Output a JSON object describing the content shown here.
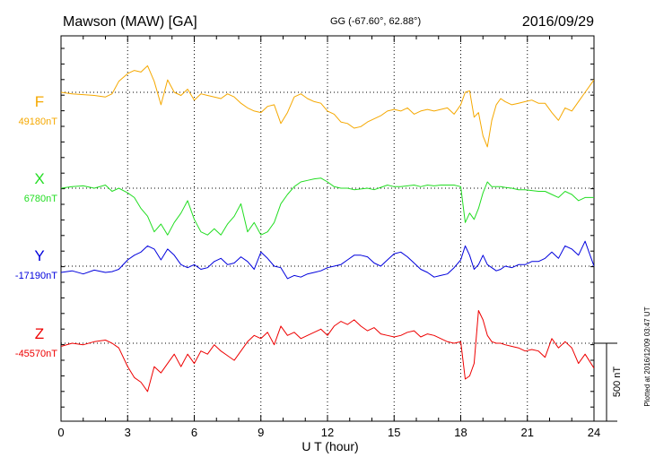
{
  "header": {
    "station": "Mawson (MAW)  [GA]",
    "coords": "GG (-67.60°,  62.88°)",
    "date": "2016/09/29"
  },
  "footer_note": "Plotted at 2016/12/09 03:47 UT",
  "colors": {
    "F": "#f5a800",
    "X": "#22dd22",
    "Y": "#0000dd",
    "Z": "#ee0000"
  },
  "chart_data": {
    "type": "line",
    "title": "Mawson (MAW)  [GA]",
    "xlabel": "U T (hour)",
    "xlim": [
      0,
      24
    ],
    "xticks": [
      0,
      3,
      6,
      9,
      12,
      15,
      18,
      21,
      24
    ],
    "grid": true,
    "scale_bar": "500 nT",
    "series": [
      {
        "name": "F",
        "baseline_label": "49180nT",
        "baseline": 49180,
        "x": [
          0,
          0.5,
          1,
          1.5,
          2,
          2.3,
          2.6,
          3,
          3.3,
          3.6,
          3.9,
          4.2,
          4.5,
          4.8,
          5.1,
          5.4,
          5.7,
          6,
          6.3,
          6.6,
          6.9,
          7.2,
          7.5,
          7.8,
          8.1,
          8.4,
          8.7,
          9,
          9.3,
          9.6,
          9.9,
          10.2,
          10.5,
          10.8,
          11.1,
          11.4,
          11.7,
          12,
          12.3,
          12.6,
          12.9,
          13.2,
          13.5,
          13.8,
          14.1,
          14.4,
          14.7,
          15,
          15.3,
          15.6,
          15.9,
          16.2,
          16.5,
          16.8,
          17.1,
          17.4,
          17.7,
          18,
          18.2,
          18.4,
          18.6,
          18.8,
          19,
          19.2,
          19.4,
          19.6,
          19.8,
          20,
          20.3,
          20.6,
          20.9,
          21.2,
          21.5,
          21.8,
          22.1,
          22.4,
          22.7,
          23,
          23.3,
          23.6,
          24
        ],
        "y": [
          49180,
          49170,
          49165,
          49160,
          49150,
          49170,
          49250,
          49300,
          49320,
          49310,
          49350,
          49250,
          49100,
          49260,
          49180,
          49160,
          49200,
          49130,
          49170,
          49160,
          49150,
          49140,
          49170,
          49150,
          49110,
          49080,
          49060,
          49050,
          49090,
          49100,
          48980,
          49050,
          49150,
          49170,
          49140,
          49120,
          49110,
          49060,
          49040,
          48990,
          48980,
          48950,
          48960,
          48990,
          49010,
          49030,
          49060,
          49070,
          49060,
          49080,
          49040,
          49060,
          49070,
          49060,
          49070,
          49080,
          49040,
          49100,
          49180,
          49190,
          49020,
          49050,
          48900,
          48830,
          49000,
          49100,
          49140,
          49120,
          49100,
          49110,
          49120,
          49130,
          49110,
          49110,
          49050,
          49000,
          49080,
          49060,
          49120,
          49180,
          49260
        ]
      },
      {
        "name": "X",
        "baseline_label": "6780nT",
        "baseline": 6780,
        "x": [
          0,
          0.5,
          1,
          1.5,
          2,
          2.3,
          2.6,
          3,
          3.3,
          3.6,
          3.9,
          4.2,
          4.5,
          4.8,
          5.1,
          5.4,
          5.7,
          6,
          6.3,
          6.6,
          6.9,
          7.2,
          7.5,
          7.8,
          8.1,
          8.4,
          8.7,
          9,
          9.3,
          9.6,
          9.9,
          10.2,
          10.5,
          10.8,
          11.1,
          11.4,
          11.7,
          12,
          12.3,
          12.6,
          12.9,
          13.2,
          13.5,
          13.8,
          14.1,
          14.4,
          14.7,
          15,
          15.3,
          15.6,
          15.9,
          16.2,
          16.5,
          16.8,
          17.1,
          17.4,
          17.7,
          18,
          18.2,
          18.4,
          18.6,
          18.8,
          19,
          19.2,
          19.4,
          19.6,
          19.8,
          20,
          20.3,
          20.6,
          20.9,
          21.2,
          21.5,
          21.8,
          22.1,
          22.4,
          22.7,
          23,
          23.3,
          23.6,
          24
        ],
        "y": [
          6780,
          6790,
          6795,
          6780,
          6800,
          6760,
          6780,
          6750,
          6720,
          6650,
          6600,
          6500,
          6550,
          6480,
          6560,
          6620,
          6700,
          6580,
          6500,
          6480,
          6520,
          6480,
          6550,
          6600,
          6680,
          6500,
          6560,
          6480,
          6500,
          6560,
          6680,
          6740,
          6790,
          6820,
          6830,
          6840,
          6845,
          6820,
          6790,
          6780,
          6780,
          6770,
          6775,
          6780,
          6770,
          6785,
          6800,
          6790,
          6790,
          6795,
          6800,
          6790,
          6800,
          6795,
          6800,
          6800,
          6800,
          6790,
          6560,
          6620,
          6580,
          6650,
          6750,
          6820,
          6790,
          6790,
          6790,
          6785,
          6780,
          6770,
          6770,
          6765,
          6760,
          6760,
          6740,
          6720,
          6760,
          6740,
          6700,
          6720,
          6720
        ]
      },
      {
        "name": "Y",
        "baseline_label": "-17190nT",
        "baseline": -17190,
        "x": [
          0,
          0.5,
          1,
          1.5,
          2,
          2.3,
          2.6,
          3,
          3.3,
          3.6,
          3.9,
          4.2,
          4.5,
          4.8,
          5.1,
          5.4,
          5.7,
          6,
          6.3,
          6.6,
          6.9,
          7.2,
          7.5,
          7.8,
          8.1,
          8.4,
          8.7,
          9,
          9.3,
          9.6,
          9.9,
          10.2,
          10.5,
          10.8,
          11.1,
          11.4,
          11.7,
          12,
          12.3,
          12.6,
          12.9,
          13.2,
          13.5,
          13.8,
          14.1,
          14.4,
          14.7,
          15,
          15.3,
          15.6,
          15.9,
          16.2,
          16.5,
          16.8,
          17.1,
          17.4,
          17.7,
          18,
          18.2,
          18.4,
          18.6,
          18.8,
          19,
          19.2,
          19.4,
          19.6,
          19.8,
          20,
          20.3,
          20.6,
          20.9,
          21.2,
          21.5,
          21.8,
          22.1,
          22.4,
          22.7,
          23,
          23.3,
          23.6,
          24
        ],
        "y": [
          -17230,
          -17220,
          -17240,
          -17215,
          -17230,
          -17225,
          -17210,
          -17150,
          -17120,
          -17100,
          -17060,
          -17080,
          -17150,
          -17080,
          -17120,
          -17180,
          -17200,
          -17180,
          -17210,
          -17200,
          -17160,
          -17140,
          -17180,
          -17170,
          -17130,
          -17160,
          -17210,
          -17100,
          -17140,
          -17190,
          -17200,
          -17270,
          -17250,
          -17260,
          -17240,
          -17230,
          -17220,
          -17200,
          -17190,
          -17180,
          -17150,
          -17120,
          -17120,
          -17130,
          -17170,
          -17190,
          -17150,
          -17110,
          -17100,
          -17130,
          -17170,
          -17210,
          -17230,
          -17260,
          -17250,
          -17240,
          -17200,
          -17150,
          -17060,
          -17120,
          -17210,
          -17180,
          -17120,
          -17180,
          -17200,
          -17220,
          -17210,
          -17190,
          -17200,
          -17180,
          -17180,
          -17160,
          -17160,
          -17140,
          -17100,
          -17140,
          -17060,
          -17080,
          -17120,
          -17030,
          -17190
        ]
      },
      {
        "name": "Z",
        "baseline_label": "-45570nT",
        "baseline": -45570,
        "x": [
          0,
          0.5,
          1,
          1.5,
          2,
          2.3,
          2.6,
          3,
          3.3,
          3.6,
          3.9,
          4.2,
          4.5,
          4.8,
          5.1,
          5.4,
          5.7,
          6,
          6.3,
          6.6,
          6.9,
          7.2,
          7.5,
          7.8,
          8.1,
          8.4,
          8.7,
          9,
          9.3,
          9.6,
          9.9,
          10.2,
          10.5,
          10.8,
          11.1,
          11.4,
          11.7,
          12,
          12.3,
          12.6,
          12.9,
          13.2,
          13.5,
          13.8,
          14.1,
          14.4,
          14.7,
          15,
          15.3,
          15.6,
          15.9,
          16.2,
          16.5,
          16.8,
          17.1,
          17.4,
          17.7,
          18,
          18.2,
          18.4,
          18.6,
          18.8,
          19,
          19.2,
          19.4,
          19.6,
          19.8,
          20,
          20.3,
          20.6,
          20.9,
          21.2,
          21.5,
          21.8,
          22.1,
          22.4,
          22.7,
          23,
          23.3,
          23.6,
          24
        ],
        "y": [
          -45590,
          -45570,
          -45580,
          -45560,
          -45550,
          -45570,
          -45600,
          -45720,
          -45790,
          -45820,
          -45880,
          -45720,
          -45760,
          -45700,
          -45640,
          -45720,
          -45640,
          -45700,
          -45620,
          -45640,
          -45580,
          -45620,
          -45650,
          -45680,
          -45620,
          -45560,
          -45520,
          -45540,
          -45500,
          -45580,
          -45460,
          -45520,
          -45500,
          -45540,
          -45520,
          -45500,
          -45480,
          -45520,
          -45460,
          -45430,
          -45450,
          -45420,
          -45460,
          -45490,
          -45470,
          -45510,
          -45520,
          -45530,
          -45520,
          -45500,
          -45490,
          -45530,
          -45510,
          -45520,
          -45540,
          -45560,
          -45570,
          -45560,
          -45800,
          -45780,
          -45700,
          -45360,
          -45420,
          -45520,
          -45560,
          -45570,
          -45570,
          -45580,
          -45590,
          -45600,
          -45620,
          -45610,
          -45620,
          -45660,
          -45540,
          -45600,
          -45560,
          -45600,
          -45700,
          -45640,
          -45730
        ]
      }
    ]
  }
}
